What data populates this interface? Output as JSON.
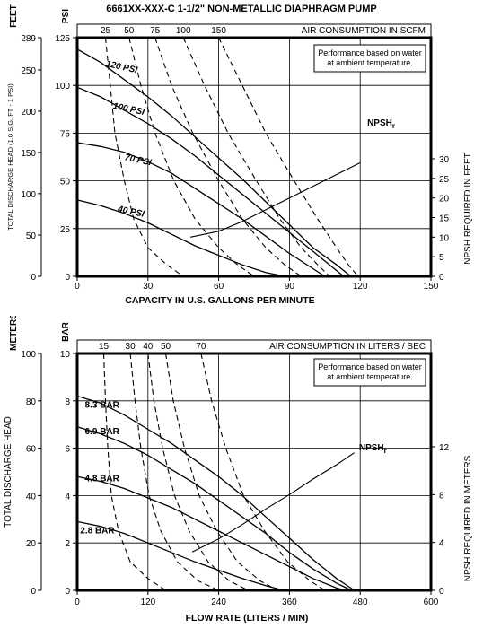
{
  "title": "6661XX-XXX-C   1-1/2\" NON-METALLIC DIAPHRAGM PUMP",
  "chart_data": [
    {
      "type": "line",
      "units": "US",
      "x_axis": {
        "label": "CAPACITY IN U.S. GALLONS PER MINUTE",
        "range": [
          0,
          150
        ],
        "ticks": [
          0,
          30,
          60,
          90,
          120,
          150
        ]
      },
      "y_axis_left": {
        "unit": "PSI",
        "range": [
          0,
          125
        ],
        "ticks": [
          0,
          25,
          50,
          75,
          100,
          125
        ]
      },
      "y_axis_outer": {
        "unit": "FEET",
        "label": "TOTAL DISCHARGE HEAD (1.0 S.G. FT - 1 PSI)",
        "range": [
          0,
          289
        ],
        "tick_labels": [
          "0",
          "50",
          "100",
          "150",
          "200",
          "250",
          "289"
        ],
        "tick_values_psi": [
          0,
          21.6,
          43.3,
          64.9,
          86.5,
          108.1,
          125
        ]
      },
      "y_axis_right": {
        "label": "NPSH REQUIRED IN FEET",
        "range": [
          0,
          30
        ],
        "ticks": [
          0,
          5,
          10,
          15,
          20,
          25,
          30
        ]
      },
      "top_axis": {
        "label": "AIR CONSUMPTION IN SCFM",
        "ticks": [
          "25",
          "50",
          "75",
          "100",
          "150"
        ]
      },
      "note": [
        "Performance based on water",
        "at ambient temperature."
      ],
      "grid": true,
      "series": [
        {
          "name": "120 PSI",
          "kind": "solid",
          "label_at": [
            12,
            110
          ],
          "points": [
            [
              0,
              119
            ],
            [
              10,
              112
            ],
            [
              20,
              103
            ],
            [
              30,
              94
            ],
            [
              40,
              84
            ],
            [
              50,
              73
            ],
            [
              60,
              62
            ],
            [
              70,
              51
            ],
            [
              80,
              39
            ],
            [
              90,
              27
            ],
            [
              100,
              15
            ],
            [
              110,
              6
            ],
            [
              116,
              0
            ]
          ]
        },
        {
          "name": "100 PSI",
          "kind": "solid",
          "label_at": [
            15,
            88
          ],
          "points": [
            [
              0,
              99
            ],
            [
              10,
              94
            ],
            [
              20,
              87
            ],
            [
              30,
              80
            ],
            [
              40,
              72
            ],
            [
              50,
              63
            ],
            [
              60,
              53
            ],
            [
              70,
              43
            ],
            [
              80,
              33
            ],
            [
              90,
              23
            ],
            [
              100,
              13
            ],
            [
              108,
              5
            ],
            [
              113,
              0
            ]
          ]
        },
        {
          "name": "70 PSI",
          "kind": "solid",
          "label_at": [
            20,
            61
          ],
          "points": [
            [
              0,
              70
            ],
            [
              10,
              68
            ],
            [
              20,
              65
            ],
            [
              30,
              60
            ],
            [
              40,
              54
            ],
            [
              50,
              46
            ],
            [
              60,
              38
            ],
            [
              70,
              30
            ],
            [
              80,
              21
            ],
            [
              90,
              12
            ],
            [
              100,
              4
            ],
            [
              105,
              0
            ]
          ]
        },
        {
          "name": "40 PSI",
          "kind": "solid",
          "label_at": [
            17,
            34
          ],
          "points": [
            [
              0,
              40
            ],
            [
              10,
              37
            ],
            [
              20,
              33
            ],
            [
              30,
              28
            ],
            [
              40,
              22
            ],
            [
              50,
              16
            ],
            [
              60,
              11
            ],
            [
              70,
              6
            ],
            [
              80,
              2
            ],
            [
              88,
              0
            ]
          ]
        },
        {
          "name": "NPSHr",
          "kind": "npsh",
          "label_at": [
            123,
            79
          ],
          "points_npsh_ft": [
            [
              48,
              10
            ],
            [
              60,
              11.5
            ],
            [
              70,
              14
            ],
            [
              80,
              17
            ],
            [
              90,
              20
            ],
            [
              100,
              23
            ],
            [
              110,
              26
            ],
            [
              120,
              29
            ]
          ]
        },
        {
          "name": "25",
          "kind": "air",
          "points": [
            [
              12,
              125
            ],
            [
              14,
              100
            ],
            [
              16,
              75
            ],
            [
              20,
              50
            ],
            [
              24,
              30
            ],
            [
              30,
              15
            ],
            [
              38,
              6
            ],
            [
              45,
              0
            ]
          ]
        },
        {
          "name": "50",
          "kind": "air",
          "points": [
            [
              22,
              125
            ],
            [
              27,
              100
            ],
            [
              33,
              75
            ],
            [
              41,
              50
            ],
            [
              50,
              30
            ],
            [
              60,
              15
            ],
            [
              68,
              6
            ],
            [
              75,
              0
            ]
          ]
        },
        {
          "name": "75",
          "kind": "air",
          "points": [
            [
              33,
              125
            ],
            [
              40,
              100
            ],
            [
              49,
              75
            ],
            [
              60,
              50
            ],
            [
              70,
              30
            ],
            [
              80,
              15
            ],
            [
              88,
              6
            ],
            [
              95,
              0
            ]
          ]
        },
        {
          "name": "100",
          "kind": "air",
          "points": [
            [
              45,
              125
            ],
            [
              54,
              100
            ],
            [
              64,
              75
            ],
            [
              76,
              50
            ],
            [
              86,
              30
            ],
            [
              95,
              15
            ],
            [
              102,
              6
            ],
            [
              107,
              0
            ]
          ]
        },
        {
          "name": "150",
          "kind": "air",
          "points": [
            [
              60,
              125
            ],
            [
              70,
              100
            ],
            [
              80,
              75
            ],
            [
              92,
              50
            ],
            [
              102,
              30
            ],
            [
              110,
              15
            ],
            [
              115,
              6
            ],
            [
              119,
              0
            ]
          ]
        }
      ]
    },
    {
      "type": "line",
      "units": "metric",
      "x_axis": {
        "label": "FLOW RATE (LITERS / MIN)",
        "range": [
          0,
          600
        ],
        "ticks": [
          0,
          120,
          240,
          360,
          480,
          600
        ]
      },
      "y_axis_left": {
        "unit": "BAR",
        "range": [
          0,
          10
        ],
        "ticks": [
          0,
          2,
          4,
          6,
          8,
          10
        ]
      },
      "y_axis_outer": {
        "unit": "METERS",
        "label": "TOTAL DISCHARGE HEAD",
        "range": [
          0,
          100
        ],
        "tick_labels": [
          "0",
          "20",
          "40",
          "60",
          "80",
          "100"
        ],
        "tick_values_bar": [
          0,
          2,
          4,
          6,
          8,
          10
        ]
      },
      "y_axis_right": {
        "label": "NPSH REQUIRED IN METERS",
        "range": [
          0,
          12
        ],
        "ticks": [
          0,
          4,
          8,
          12
        ]
      },
      "top_axis": {
        "label": "AIR CONSUMPTION IN LITERS / SEC",
        "ticks": [
          "15",
          "30",
          "40",
          "50",
          "70"
        ]
      },
      "note": [
        "Performance based on water",
        "at ambient temperature."
      ],
      "grid": true,
      "series": [
        {
          "name": "8.3 BAR",
          "kind": "solid",
          "label_at": [
            13,
            7.7
          ],
          "points": [
            [
              0,
              8.2
            ],
            [
              40,
              7.9
            ],
            [
              80,
              7.4
            ],
            [
              120,
              6.8
            ],
            [
              160,
              6.2
            ],
            [
              200,
              5.5
            ],
            [
              240,
              4.8
            ],
            [
              280,
              4.0
            ],
            [
              320,
              3.1
            ],
            [
              360,
              2.2
            ],
            [
              400,
              1.3
            ],
            [
              440,
              0.5
            ],
            [
              470,
              0
            ]
          ]
        },
        {
          "name": "6.9 BAR",
          "kind": "solid",
          "label_at": [
            13,
            6.6
          ],
          "points": [
            [
              0,
              6.9
            ],
            [
              40,
              6.6
            ],
            [
              80,
              6.2
            ],
            [
              120,
              5.7
            ],
            [
              160,
              5.1
            ],
            [
              200,
              4.5
            ],
            [
              240,
              3.8
            ],
            [
              280,
              3.1
            ],
            [
              320,
              2.4
            ],
            [
              360,
              1.6
            ],
            [
              400,
              0.9
            ],
            [
              440,
              0.3
            ],
            [
              465,
              0
            ]
          ]
        },
        {
          "name": "4.8 BAR",
          "kind": "solid",
          "label_at": [
            13,
            4.6
          ],
          "points": [
            [
              0,
              4.8
            ],
            [
              40,
              4.6
            ],
            [
              80,
              4.3
            ],
            [
              120,
              3.9
            ],
            [
              160,
              3.5
            ],
            [
              200,
              3.0
            ],
            [
              240,
              2.5
            ],
            [
              280,
              2.0
            ],
            [
              320,
              1.5
            ],
            [
              360,
              1.0
            ],
            [
              400,
              0.5
            ],
            [
              440,
              0.1
            ],
            [
              455,
              0
            ]
          ]
        },
        {
          "name": "2.8 BAR",
          "kind": "solid",
          "label_at": [
            5,
            2.4
          ],
          "points": [
            [
              0,
              2.9
            ],
            [
              40,
              2.7
            ],
            [
              80,
              2.4
            ],
            [
              120,
              2.0
            ],
            [
              160,
              1.6
            ],
            [
              200,
              1.2
            ],
            [
              240,
              0.85
            ],
            [
              280,
              0.5
            ],
            [
              320,
              0.2
            ],
            [
              350,
              0
            ]
          ]
        },
        {
          "name": "NPSHr",
          "kind": "npsh",
          "label_at": [
            478,
            5.9
          ],
          "points_npsh_m": [
            [
              195,
              3.2
            ],
            [
              240,
              4.3
            ],
            [
              280,
              5.5
            ],
            [
              320,
              6.8
            ],
            [
              360,
              8.0
            ],
            [
              400,
              9.3
            ],
            [
              440,
              10.5
            ],
            [
              470,
              11.5
            ]
          ]
        },
        {
          "name": "15",
          "kind": "air",
          "points": [
            [
              45,
              10
            ],
            [
              48,
              8
            ],
            [
              52,
              6
            ],
            [
              58,
              4
            ],
            [
              70,
              2.5
            ],
            [
              90,
              1.2
            ],
            [
              120,
              0.5
            ],
            [
              150,
              0
            ]
          ]
        },
        {
          "name": "30",
          "kind": "air",
          "points": [
            [
              90,
              10
            ],
            [
              98,
              8
            ],
            [
              108,
              6
            ],
            [
              122,
              4
            ],
            [
              142,
              2.5
            ],
            [
              170,
              1.2
            ],
            [
              205,
              0.4
            ],
            [
              240,
              0
            ]
          ]
        },
        {
          "name": "40",
          "kind": "air",
          "points": [
            [
              120,
              10
            ],
            [
              130,
              8
            ],
            [
              145,
              6
            ],
            [
              165,
              4
            ],
            [
              190,
              2.5
            ],
            [
              222,
              1.2
            ],
            [
              258,
              0.4
            ],
            [
              290,
              0
            ]
          ]
        },
        {
          "name": "50",
          "kind": "air",
          "points": [
            [
              150,
              10
            ],
            [
              163,
              8
            ],
            [
              182,
              6
            ],
            [
              207,
              4
            ],
            [
              237,
              2.5
            ],
            [
              272,
              1.2
            ],
            [
              310,
              0.4
            ],
            [
              340,
              0
            ]
          ]
        },
        {
          "name": "70",
          "kind": "air",
          "points": [
            [
              210,
              10
            ],
            [
              228,
              8
            ],
            [
              252,
              6
            ],
            [
              282,
              4
            ],
            [
              318,
              2.5
            ],
            [
              357,
              1.2
            ],
            [
              395,
              0.4
            ],
            [
              420,
              0
            ]
          ]
        }
      ]
    }
  ]
}
